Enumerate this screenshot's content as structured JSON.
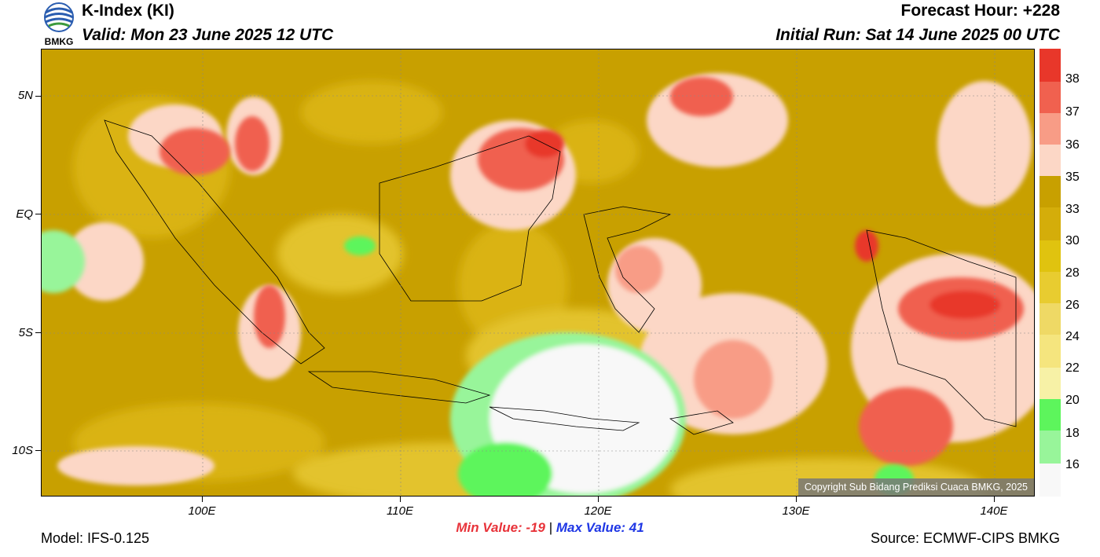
{
  "header": {
    "title": "K-Index (KI)",
    "valid": "Valid: Mon 23 June 2025 12 UTC",
    "forecast_hour": "Forecast Hour: +228",
    "initial_run": "Initial Run: Sat 14 June 2025 00 UTC",
    "logo_text": "BMKG"
  },
  "map": {
    "latitude_labels": [
      "5N",
      "EQ",
      "5S",
      "10S"
    ],
    "longitude_labels": [
      "100E",
      "110E",
      "120E",
      "130E",
      "140E"
    ],
    "copyright": "Copyright Sub Bidang Prediksi Cuaca BMKG, 2025"
  },
  "colorbar": {
    "labels": [
      "38",
      "37",
      "36",
      "35",
      "33",
      "30",
      "28",
      "26",
      "24",
      "22",
      "20",
      "18",
      "16"
    ],
    "colors": [
      "#e8372a",
      "#f0614f",
      "#f89c86",
      "#fcd7c6",
      "#c8a000",
      "#d4ad0a",
      "#e0c30f",
      "#e8cc30",
      "#efd965",
      "#f5e57e",
      "#f7f1a6",
      "#5df55c",
      "#98f59a",
      "#f8f8f8"
    ]
  },
  "footer": {
    "min_label": "Min Value: -19",
    "separator": "|",
    "max_label": "Max Value:  41",
    "model": "Model: IFS-0.125",
    "source": "Source: ECMWF-CIPS BMKG"
  }
}
